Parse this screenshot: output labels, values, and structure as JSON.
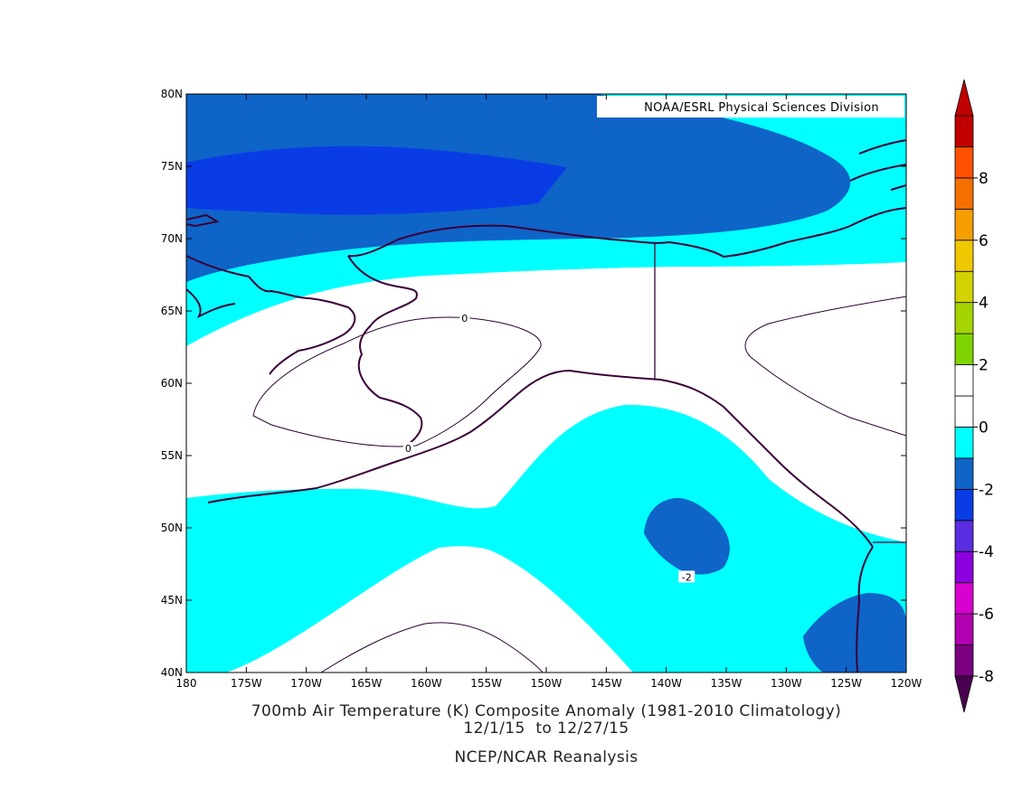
{
  "credit": "NOAA/ESRL Physical Sciences Division",
  "title_lines": [
    "700mb Air Temperature (K) Composite Anomaly (1981-2010 Climatology)",
    "12/1/15  to 12/27/15",
    "NCEP/NCAR Reanalysis"
  ],
  "map_extent": {
    "lon_min": -180,
    "lon_max": -120,
    "lat_min": 40,
    "lat_max": 80
  },
  "lat_ticks": [
    "80N",
    "75N",
    "70N",
    "65N",
    "60N",
    "55N",
    "50N",
    "45N",
    "40N"
  ],
  "lon_ticks": [
    "180",
    "175W",
    "170W",
    "165W",
    "160W",
    "155W",
    "150W",
    "145W",
    "140W",
    "135W",
    "130W",
    "125W",
    "120W"
  ],
  "contour_labels": [
    {
      "text": "0",
      "lon": -156.8,
      "lat": 64.5
    },
    {
      "text": "0",
      "lon": -161.5,
      "lat": 55.5
    },
    {
      "text": "-2",
      "lon": -138.3,
      "lat": 46.6
    }
  ],
  "colorbar": {
    "colors": [
      "#7a0080",
      "#b000b0",
      "#d800d0",
      "#8c00e0",
      "#5a2de0",
      "#0a3ce6",
      "#0f64c8",
      "#00ffff",
      "#ffffff",
      "#ffffff",
      "#7fd400",
      "#a6d400",
      "#d2d200",
      "#f0c800",
      "#f59e00",
      "#f57000",
      "#ff5000",
      "#c00000"
    ],
    "labels": [
      "-8",
      "-6",
      "-4",
      "-2",
      "0",
      "2",
      "4",
      "6",
      "8"
    ]
  },
  "shading_colors": {
    "cyan": "#00ffff",
    "mid_blue": "#0f64c8",
    "deep_blue": "#0a3ce6",
    "coast": "#3a0038",
    "contour": "#2a0030"
  }
}
